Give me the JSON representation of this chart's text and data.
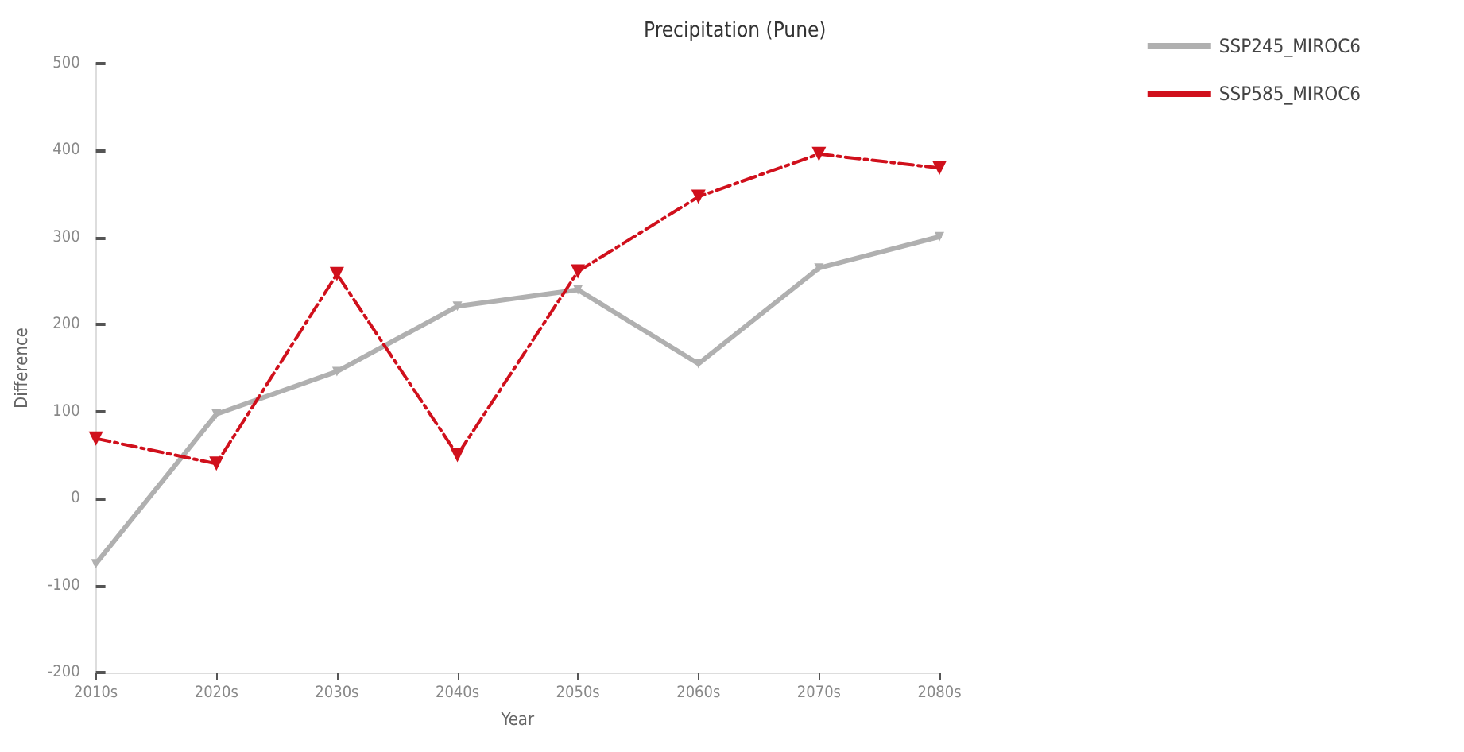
{
  "chart_data": {
    "type": "line",
    "title": "Precipitation (Pune)",
    "xlabel": "Year",
    "ylabel": "Difference",
    "categories": [
      "2010s",
      "2020s",
      "2030s",
      "2040s",
      "2050s",
      "2060s",
      "2070s",
      "2080s"
    ],
    "series": [
      {
        "name": "SSP245_MIROC6",
        "color": "#b0b0b0",
        "line_style": "solid",
        "values": [
          -75,
          97,
          146,
          221,
          240,
          155,
          265,
          301
        ]
      },
      {
        "name": "SSP585_MIROC6",
        "color": "#d0101c",
        "line_style": "dashed",
        "values": [
          69,
          40,
          258,
          50,
          261,
          347,
          396,
          380
        ]
      }
    ],
    "ylim": [
      -200,
      500
    ],
    "yticks": [
      -200,
      -100,
      0,
      100,
      200,
      300,
      400,
      500
    ],
    "grid": false,
    "legend": "top right",
    "marker": "triangle"
  }
}
